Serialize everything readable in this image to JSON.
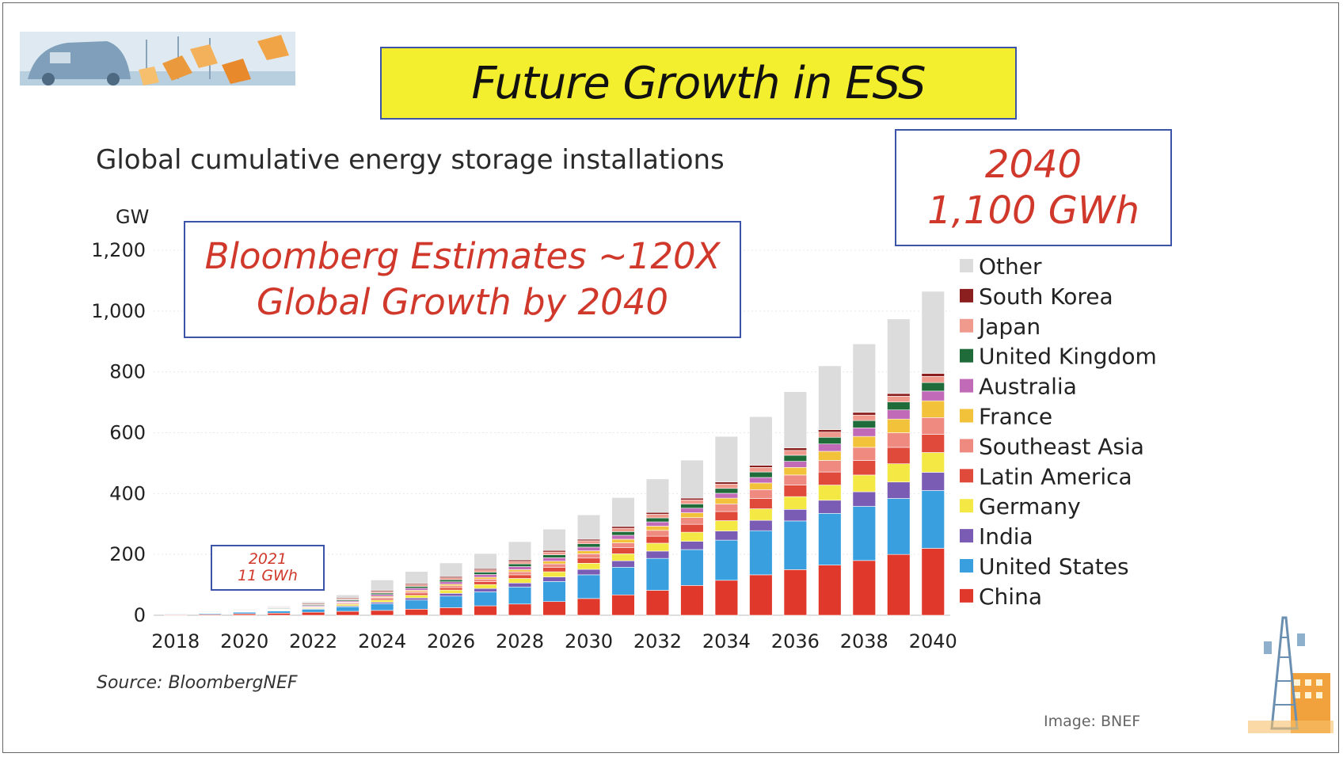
{
  "slide": {
    "title": "Future Growth in ESS",
    "callout_main": [
      "Bloomberg Estimates ~120X",
      "Global Growth by 2040"
    ],
    "callout_2040": [
      "2040",
      "1,100 GWh"
    ],
    "callout_2021": [
      "2021",
      "11 GWh"
    ],
    "source": "Source: BloombergNEF",
    "image_credit": "Image: BNEF"
  },
  "colors": {
    "China": "#e0382b",
    "United States": "#3a9fde",
    "India": "#7b5cb4",
    "Germany": "#f3e844",
    "Latin America": "#e04a3b",
    "Southeast Asia": "#ee8a80",
    "France": "#f2c23a",
    "Australia": "#c06ab8",
    "United Kingdom": "#1f6b3a",
    "Japan": "#f09a8e",
    "South Korea": "#8b1e1e",
    "Other": "#dcdcdc",
    "title_bg": "#f4ef2e",
    "callout_text": "#d0382b",
    "callout_border": "#3d55a8"
  },
  "chart_data": {
    "type": "bar",
    "stacked": true,
    "title": "Global cumulative energy storage installations",
    "ylabel": "GW",
    "xlabel": "",
    "ylim": [
      0,
      1200
    ],
    "yticks": [
      0,
      200,
      400,
      600,
      800,
      1000,
      1200
    ],
    "ytick_labels": [
      "0",
      "200",
      "400",
      "600",
      "800",
      "1,000",
      "1,200"
    ],
    "categories": [
      2018,
      2019,
      2020,
      2021,
      2022,
      2023,
      2024,
      2025,
      2026,
      2027,
      2028,
      2029,
      2030,
      2031,
      2032,
      2033,
      2034,
      2035,
      2036,
      2037,
      2038,
      2039,
      2040
    ],
    "xtick_labels": [
      "2018",
      "2020",
      "2022",
      "2024",
      "2026",
      "2028",
      "2030",
      "2032",
      "2034",
      "2036",
      "2038",
      "2040"
    ],
    "grid": true,
    "legend_position": "right",
    "series": [
      {
        "name": "China",
        "values": [
          2,
          3,
          5,
          7,
          10,
          13,
          16,
          20,
          25,
          31,
          37,
          45,
          55,
          67,
          82,
          98,
          115,
          133,
          150,
          165,
          180,
          200,
          220
        ]
      },
      {
        "name": "United States",
        "values": [
          2,
          3,
          5,
          7,
          10,
          15,
          22,
          30,
          38,
          46,
          56,
          66,
          78,
          91,
          105,
          118,
          132,
          145,
          160,
          170,
          178,
          184,
          190
        ]
      },
      {
        "name": "India",
        "values": [
          0,
          0,
          1,
          1,
          2,
          3,
          5,
          7,
          9,
          11,
          13,
          15,
          18,
          21,
          24,
          27,
          30,
          34,
          38,
          43,
          48,
          54,
          60
        ]
      },
      {
        "name": "Germany",
        "values": [
          1,
          1,
          1,
          2,
          3,
          5,
          7,
          9,
          11,
          13,
          15,
          17,
          20,
          23,
          26,
          30,
          34,
          38,
          42,
          50,
          55,
          60,
          65
        ]
      },
      {
        "name": "Latin America",
        "values": [
          0,
          0,
          1,
          1,
          2,
          3,
          5,
          7,
          8,
          10,
          12,
          14,
          17,
          20,
          23,
          26,
          30,
          34,
          38,
          43,
          48,
          54,
          60
        ]
      },
      {
        "name": "Southeast Asia",
        "values": [
          0,
          0,
          0,
          1,
          1,
          2,
          4,
          5,
          6,
          8,
          10,
          12,
          14,
          16,
          19,
          22,
          25,
          29,
          33,
          38,
          43,
          48,
          55
        ]
      },
      {
        "name": "France",
        "values": [
          0,
          0,
          0,
          1,
          1,
          2,
          3,
          4,
          5,
          6,
          7,
          9,
          10,
          12,
          14,
          16,
          19,
          22,
          25,
          30,
          36,
          45,
          55
        ]
      },
      {
        "name": "Australia",
        "values": [
          1,
          1,
          1,
          2,
          3,
          4,
          6,
          7,
          8,
          9,
          10,
          11,
          12,
          13,
          14,
          15,
          16,
          18,
          20,
          24,
          28,
          30,
          32
        ]
      },
      {
        "name": "United Kingdom",
        "values": [
          1,
          1,
          1,
          2,
          3,
          4,
          5,
          6,
          7,
          8,
          9,
          10,
          11,
          12,
          13,
          14,
          16,
          18,
          20,
          22,
          24,
          26,
          28
        ]
      },
      {
        "name": "Japan",
        "values": [
          0,
          0,
          1,
          1,
          2,
          3,
          4,
          5,
          6,
          7,
          8,
          9,
          10,
          11,
          12,
          13,
          14,
          15,
          16,
          17,
          18,
          19,
          20
        ]
      },
      {
        "name": "South Korea",
        "values": [
          1,
          1,
          2,
          2,
          3,
          3,
          4,
          4,
          4,
          4,
          5,
          5,
          5,
          6,
          6,
          6,
          7,
          7,
          8,
          8,
          9,
          9,
          10
        ]
      },
      {
        "name": "Other",
        "values": [
          1,
          2,
          2,
          3,
          5,
          10,
          35,
          40,
          45,
          50,
          60,
          70,
          80,
          95,
          110,
          125,
          150,
          160,
          185,
          210,
          225,
          245,
          270
        ]
      }
    ],
    "legend_order": [
      "Other",
      "South Korea",
      "Japan",
      "United Kingdom",
      "Australia",
      "France",
      "Southeast Asia",
      "Latin America",
      "Germany",
      "India",
      "United States",
      "China"
    ]
  }
}
